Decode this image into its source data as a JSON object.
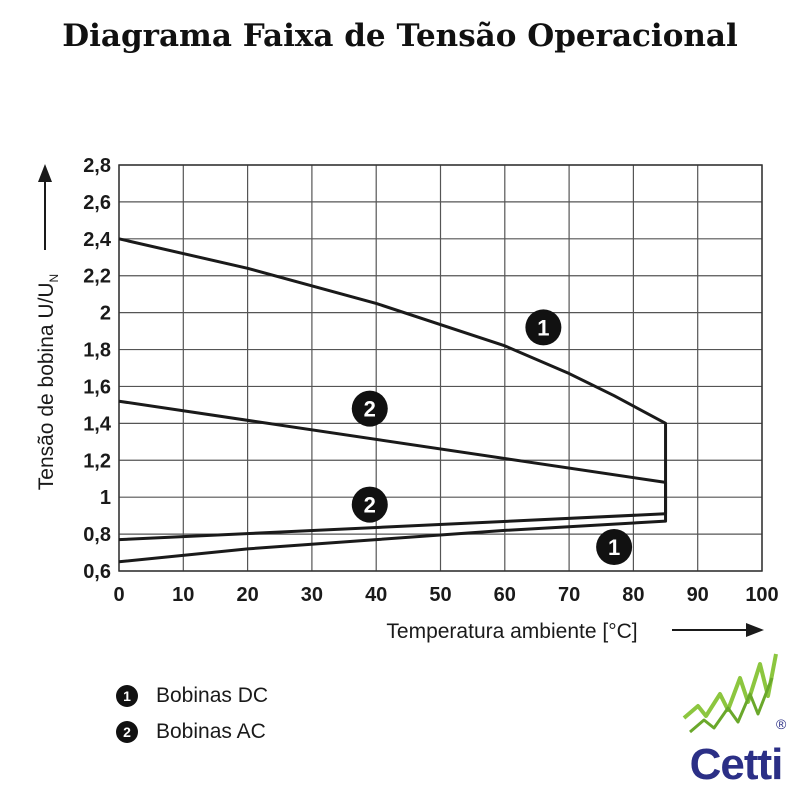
{
  "title": "Diagrama Faixa de Tensão Operacional",
  "chart_data": {
    "type": "line",
    "xlabel": "Temperatura ambiente [°C]",
    "ylabel_main": "Tensão de bobina U/U",
    "ylabel_sub": "N",
    "xlim": [
      0,
      100
    ],
    "ylim": [
      0.6,
      2.8
    ],
    "x_ticks": [
      0,
      10,
      20,
      30,
      40,
      50,
      60,
      70,
      80,
      90,
      100
    ],
    "x_tick_labels": [
      "0",
      "10",
      "20",
      "30",
      "40",
      "50",
      "60",
      "70",
      "80",
      "90",
      "100"
    ],
    "y_ticks": [
      0.6,
      0.8,
      1.0,
      1.2,
      1.4,
      1.6,
      1.8,
      2.0,
      2.2,
      2.4,
      2.6,
      2.8
    ],
    "y_tick_labels": [
      "0,6",
      "0,8",
      "1",
      "1,2",
      "1,4",
      "1,6",
      "1,8",
      "2",
      "2,2",
      "2,4",
      "2,6",
      "2,8"
    ],
    "grid": true,
    "series": [
      {
        "name": "Bobinas DC",
        "label": "1",
        "x": [
          0,
          20,
          40,
          60,
          70,
          77,
          85,
          85,
          85,
          60,
          40,
          20,
          0
        ],
        "y": [
          2.4,
          2.24,
          2.05,
          1.82,
          1.67,
          1.55,
          1.4,
          1.14,
          0.87,
          0.82,
          0.77,
          0.72,
          0.65
        ]
      },
      {
        "name": "Bobinas AC",
        "label": "2",
        "upper": {
          "x": [
            0,
            85
          ],
          "y": [
            1.52,
            1.08
          ]
        },
        "lower": {
          "x": [
            0,
            85
          ],
          "y": [
            0.77,
            0.91
          ]
        }
      }
    ],
    "annotations": [
      {
        "text": "1",
        "x": 66,
        "y": 1.92
      },
      {
        "text": "2",
        "x": 39,
        "y": 1.48
      },
      {
        "text": "2",
        "x": 39,
        "y": 0.96
      },
      {
        "text": "1",
        "x": 77,
        "y": 0.73
      }
    ]
  },
  "legend": [
    {
      "badge": "1",
      "label": "Bobinas DC"
    },
    {
      "badge": "2",
      "label": "Bobinas AC"
    }
  ],
  "logo": {
    "text": "Cetti",
    "registered": "®"
  }
}
